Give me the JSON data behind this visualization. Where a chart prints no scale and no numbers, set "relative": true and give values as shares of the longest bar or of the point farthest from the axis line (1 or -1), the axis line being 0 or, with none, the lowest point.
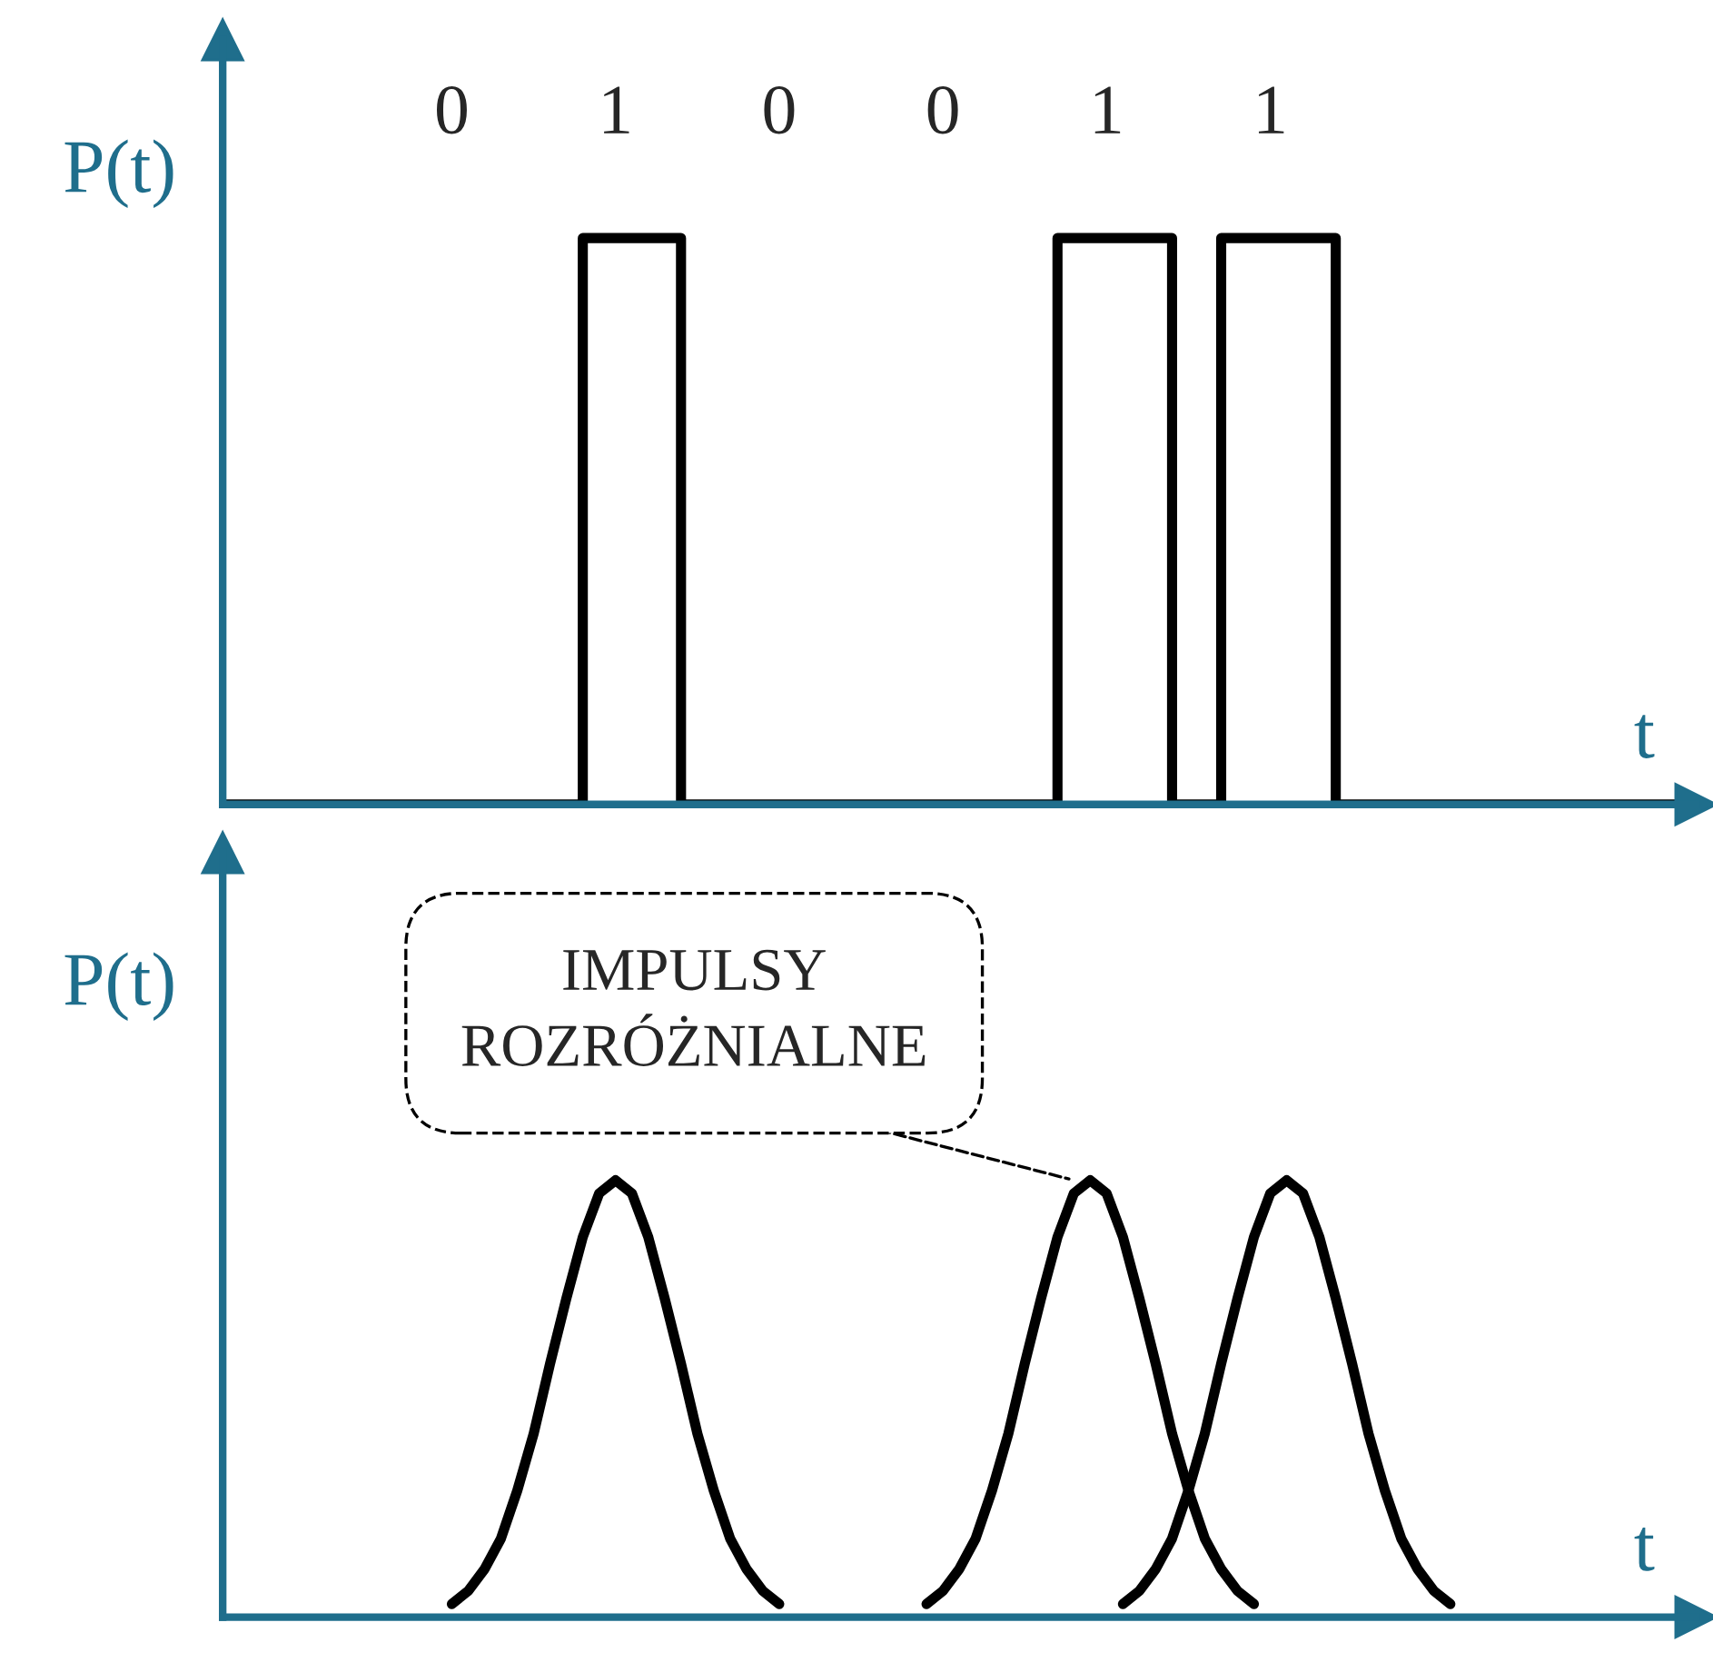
{
  "chart_data": [
    {
      "type": "step",
      "relative": true,
      "ylabel": "P(t)",
      "xlabel": "t",
      "color": "#000000",
      "grid": false,
      "annotations": [
        "0",
        "1",
        "0",
        "0",
        "1",
        "1"
      ],
      "categories": [
        null,
        null,
        null,
        null,
        null,
        null,
        null,
        null,
        null,
        null,
        null,
        null,
        null,
        null,
        null,
        null,
        null,
        null,
        null,
        null,
        null,
        null,
        null,
        null,
        null,
        null,
        null,
        null,
        null,
        null,
        null,
        null,
        null,
        null,
        null,
        null,
        null,
        null,
        null,
        null,
        null,
        null,
        null,
        null,
        null,
        null,
        null,
        null,
        null,
        null,
        null,
        null,
        null,
        null,
        null,
        null,
        null,
        null,
        null,
        null,
        null,
        null,
        null,
        null,
        null,
        null,
        null,
        null,
        null,
        null,
        null,
        null,
        null,
        null,
        null,
        null,
        null,
        null,
        null,
        null,
        null,
        null,
        null,
        null,
        null,
        null,
        null,
        null,
        null,
        null
      ],
      "values": [
        0,
        0,
        0,
        0,
        0,
        0,
        0,
        0,
        0,
        0,
        0,
        0,
        0,
        0,
        0,
        0,
        0,
        0,
        0,
        0,
        0,
        0,
        1,
        1,
        1,
        1,
        1,
        1,
        0,
        0,
        0,
        0,
        0,
        0,
        0,
        0,
        0,
        0,
        0,
        0,
        0,
        0,
        0,
        0,
        0,
        0,
        0,
        0,
        0,
        0,
        0,
        1,
        1,
        1,
        1,
        1,
        1,
        1,
        0,
        0,
        0,
        1,
        1,
        1,
        1,
        1,
        1,
        1,
        0,
        0,
        0,
        0,
        0,
        0,
        0,
        0,
        0,
        0,
        0,
        0,
        0,
        0,
        0,
        0,
        0,
        0,
        0,
        0,
        0,
        0
      ]
    },
    {
      "type": "line",
      "relative": true,
      "ylabel": "P(t)",
      "xlabel": "t",
      "grid": false,
      "annotations": [
        "IMPULSY\nROZRÓŻNIALNE"
      ],
      "categories": [
        null,
        null,
        null,
        null,
        null,
        null,
        null,
        null,
        null,
        null,
        null,
        null,
        null,
        null,
        null,
        null,
        null,
        null,
        null,
        null,
        null,
        null,
        null,
        null,
        null,
        null,
        null,
        null,
        null,
        null,
        null,
        null,
        null,
        null,
        null,
        null,
        null,
        null,
        null,
        null,
        null,
        null,
        null,
        null,
        null,
        null,
        null,
        null,
        null,
        null,
        null,
        null,
        null,
        null,
        null,
        null,
        null,
        null,
        null,
        null,
        null,
        null,
        null,
        null,
        null,
        null,
        null,
        null,
        null,
        null,
        null,
        null,
        null,
        null,
        null,
        null,
        null,
        null,
        null,
        null,
        null,
        null,
        null,
        null,
        null,
        null,
        null,
        null,
        null,
        null
      ],
      "series": [
        {
          "color": "#000000",
          "values": [
            null,
            null,
            null,
            null,
            null,
            null,
            null,
            null,
            null,
            null,
            null,
            null,
            null,
            null,
            0.03,
            0.06,
            0.11,
            0.18,
            0.29,
            0.42,
            0.58,
            0.73,
            0.87,
            0.97,
            1,
            0.97,
            0.87,
            0.73,
            0.58,
            0.42,
            0.29,
            0.18,
            0.11,
            0.06,
            0.03,
            null,
            null,
            null,
            null,
            null,
            null,
            null,
            null,
            null,
            null,
            null,
            null,
            null,
            null,
            null,
            null,
            null,
            null,
            null,
            null,
            null,
            null,
            null,
            null,
            null,
            null,
            null,
            null,
            null,
            null,
            null,
            null,
            null,
            null,
            null,
            null,
            null,
            null,
            null,
            null,
            null,
            null,
            null,
            null,
            null,
            null,
            null,
            null,
            null,
            null,
            null,
            null,
            null,
            null,
            null
          ]
        },
        {
          "color": "#000000",
          "values": [
            null,
            null,
            null,
            null,
            null,
            null,
            null,
            null,
            null,
            null,
            null,
            null,
            null,
            null,
            null,
            null,
            null,
            null,
            null,
            null,
            null,
            null,
            null,
            null,
            null,
            null,
            null,
            null,
            null,
            null,
            null,
            null,
            null,
            null,
            null,
            null,
            null,
            null,
            null,
            null,
            null,
            null,
            null,
            0.03,
            0.06,
            0.11,
            0.18,
            0.29,
            0.42,
            0.58,
            0.73,
            0.87,
            0.97,
            1,
            0.97,
            0.87,
            0.73,
            0.58,
            0.42,
            0.29,
            0.18,
            0.11,
            0.06,
            0.03,
            null,
            null,
            null,
            null,
            null,
            null,
            null,
            null,
            null,
            null,
            null,
            null,
            null,
            null,
            null,
            null,
            null,
            null,
            null,
            null,
            null,
            null,
            null,
            null,
            null,
            null
          ]
        },
        {
          "color": "#000000",
          "values": [
            null,
            null,
            null,
            null,
            null,
            null,
            null,
            null,
            null,
            null,
            null,
            null,
            null,
            null,
            null,
            null,
            null,
            null,
            null,
            null,
            null,
            null,
            null,
            null,
            null,
            null,
            null,
            null,
            null,
            null,
            null,
            null,
            null,
            null,
            null,
            null,
            null,
            null,
            null,
            null,
            null,
            null,
            null,
            null,
            null,
            null,
            null,
            null,
            null,
            null,
            null,
            null,
            null,
            null,
            null,
            0.03,
            0.06,
            0.11,
            0.18,
            0.29,
            0.42,
            0.58,
            0.73,
            0.87,
            0.97,
            1,
            0.97,
            0.87,
            0.73,
            0.58,
            0.42,
            0.29,
            0.18,
            0.11,
            0.06,
            0.03,
            null,
            null,
            null,
            null,
            null,
            null,
            null,
            null,
            null,
            null,
            null,
            null,
            null,
            null
          ]
        }
      ]
    }
  ]
}
